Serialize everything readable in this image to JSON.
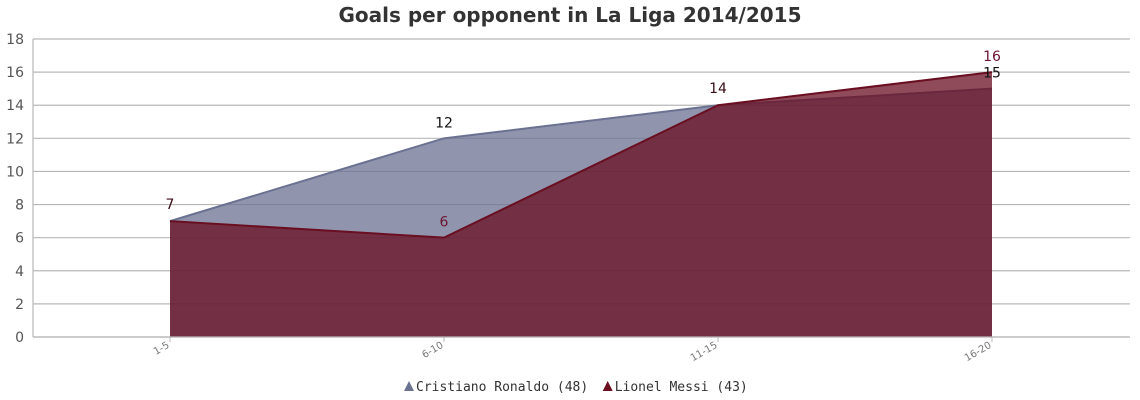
{
  "chart_data": {
    "type": "area",
    "title": "Goals per opponent in La Liga 2014/2015",
    "xlabel": "",
    "ylabel": "",
    "categories": [
      "1-5",
      "6-10",
      "11-15",
      "16-20"
    ],
    "ylim": [
      0,
      18
    ],
    "yticks": [
      "0",
      "2",
      "4",
      "6",
      "8",
      "10",
      "12",
      "14",
      "16",
      "18"
    ],
    "grid": true,
    "legend_position": "bottom-center",
    "series": [
      {
        "name": "Cristiano Ronaldo (48)",
        "values": [
          7,
          12,
          14,
          15
        ],
        "color": "#6b7291",
        "fill_opacity": 0.75,
        "label_color": "#111111",
        "marker": "triangle"
      },
      {
        "name": "Lionel Messi (43)",
        "values": [
          7,
          6,
          14,
          16
        ],
        "color": "#6a0f22",
        "fill_opacity": 0.75,
        "label_color": "#6a1530",
        "marker": "triangle"
      }
    ]
  }
}
